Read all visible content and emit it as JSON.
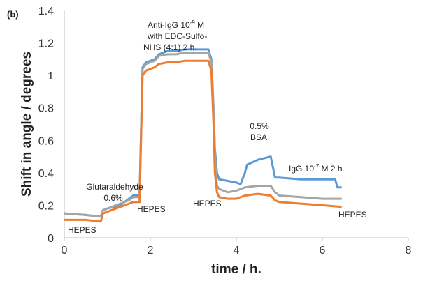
{
  "chart_data": {
    "type": "line",
    "panel_label": "(b)",
    "xlabel": "time / h.",
    "ylabel": "Shift in angle / degrees",
    "xlim": [
      0,
      8
    ],
    "ylim": [
      0,
      1.4
    ],
    "xticks": [
      0,
      2,
      4,
      6,
      8
    ],
    "yticks": [
      0,
      0.2,
      0.4,
      0.6,
      0.8,
      1,
      1.2,
      1.4
    ],
    "xtick_labels": [
      "0",
      "2",
      "4",
      "6",
      "8"
    ],
    "ytick_labels": [
      "0",
      "0.2",
      "0.4",
      "0.6",
      "0.8",
      "1",
      "1.2",
      "1.4"
    ],
    "grid": false,
    "legend": "none",
    "series": [
      {
        "name": "blue",
        "color": "#5b9bd5",
        "x": [
          0,
          0.5,
          0.85,
          0.9,
          1.0,
          1.3,
          1.5,
          1.6,
          1.75,
          1.82,
          1.9,
          2.1,
          2.2,
          2.4,
          2.6,
          2.8,
          3.0,
          3.2,
          3.35,
          3.42,
          3.47,
          3.5,
          3.55,
          3.6,
          3.8,
          4.0,
          4.1,
          4.2,
          4.25,
          4.5,
          4.8,
          4.9,
          5.0,
          5.5,
          6.0,
          6.3,
          6.35,
          6.45
        ],
        "y": [
          0.15,
          0.14,
          0.13,
          0.17,
          0.18,
          0.2,
          0.24,
          0.26,
          0.26,
          1.05,
          1.08,
          1.1,
          1.13,
          1.15,
          1.15,
          1.16,
          1.16,
          1.16,
          1.16,
          1.1,
          0.8,
          0.55,
          0.4,
          0.36,
          0.35,
          0.34,
          0.33,
          0.4,
          0.45,
          0.48,
          0.5,
          0.37,
          0.37,
          0.36,
          0.36,
          0.36,
          0.31,
          0.31
        ]
      },
      {
        "name": "gray",
        "color": "#a5a5a5",
        "x": [
          0,
          0.5,
          0.85,
          0.9,
          1.0,
          1.3,
          1.5,
          1.6,
          1.75,
          1.82,
          1.9,
          2.1,
          2.2,
          2.4,
          2.6,
          2.8,
          3.0,
          3.2,
          3.35,
          3.42,
          3.47,
          3.5,
          3.55,
          3.6,
          3.8,
          4.0,
          4.2,
          4.5,
          4.8,
          4.9,
          5.0,
          5.5,
          6.0,
          6.45
        ],
        "y": [
          0.15,
          0.14,
          0.13,
          0.17,
          0.18,
          0.21,
          0.23,
          0.25,
          0.25,
          1.04,
          1.07,
          1.09,
          1.12,
          1.13,
          1.13,
          1.14,
          1.14,
          1.14,
          1.14,
          1.08,
          0.8,
          0.5,
          0.32,
          0.3,
          0.28,
          0.29,
          0.31,
          0.32,
          0.32,
          0.28,
          0.26,
          0.25,
          0.24,
          0.24
        ]
      },
      {
        "name": "orange",
        "color": "#ed7d31",
        "x": [
          0,
          0.5,
          0.85,
          0.9,
          1.0,
          1.3,
          1.5,
          1.6,
          1.75,
          1.82,
          1.9,
          2.1,
          2.2,
          2.4,
          2.6,
          2.8,
          3.0,
          3.2,
          3.35,
          3.42,
          3.47,
          3.5,
          3.55,
          3.6,
          3.8,
          4.0,
          4.2,
          4.5,
          4.8,
          4.9,
          5.0,
          5.5,
          6.0,
          6.45
        ],
        "y": [
          0.11,
          0.11,
          0.1,
          0.15,
          0.16,
          0.19,
          0.21,
          0.22,
          0.22,
          1.0,
          1.03,
          1.05,
          1.07,
          1.08,
          1.08,
          1.09,
          1.09,
          1.09,
          1.09,
          1.03,
          0.7,
          0.4,
          0.28,
          0.25,
          0.24,
          0.24,
          0.26,
          0.27,
          0.26,
          0.23,
          0.22,
          0.21,
          0.2,
          0.19
        ]
      }
    ],
    "annotations": {
      "glut_line1": "Glutaraldehyde",
      "glut_line2": "0.6%",
      "hepes_1": "HEPES",
      "hepes_2": "HEPES",
      "hepes_3": "HEPES",
      "hepes_4": "HEPES",
      "antiigg_a": "Anti-IgG 10",
      "antiigg_sup": "-9",
      "antiigg_b": " M",
      "antiigg_line2": "with EDC-Sulfo-",
      "antiigg_line3": "NHS (4:1) 2 h.",
      "bsa_line1": "0.5%",
      "bsa_line2": "BSA",
      "igg_a": "IgG 10",
      "igg_sup": "-7",
      "igg_b": " M 2 h."
    }
  }
}
